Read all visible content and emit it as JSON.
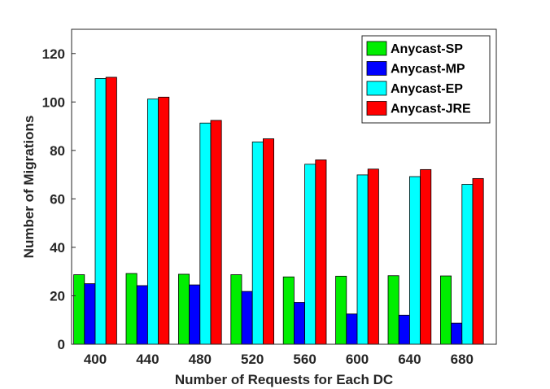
{
  "chart_data": {
    "type": "bar",
    "xlabel": "Number of Requests for Each DC",
    "ylabel": "Number of Migrations",
    "categories": [
      "400",
      "440",
      "480",
      "520",
      "560",
      "600",
      "640",
      "680"
    ],
    "ylim": [
      0,
      130
    ],
    "yticks": [
      0,
      20,
      40,
      60,
      80,
      100,
      120
    ],
    "grid": false,
    "legend_position": "top-right",
    "series": [
      {
        "name": "Anycast-SP",
        "color": "#00ee00",
        "values": [
          28.7,
          29.2,
          28.9,
          28.7,
          27.8,
          28.1,
          28.3,
          28.2
        ]
      },
      {
        "name": "Anycast-MP",
        "color": "#0000ff",
        "values": [
          25.0,
          24.2,
          24.5,
          21.8,
          17.3,
          12.5,
          12.0,
          8.7
        ]
      },
      {
        "name": "Anycast-EP",
        "color": "#00ffff",
        "values": [
          109.7,
          101.2,
          91.3,
          83.5,
          74.3,
          69.9,
          69.2,
          66.0
        ]
      },
      {
        "name": "Anycast-JRE",
        "color": "#ff0000",
        "values": [
          110.2,
          102.0,
          92.4,
          84.8,
          76.1,
          72.3,
          72.1,
          68.4
        ]
      }
    ]
  }
}
